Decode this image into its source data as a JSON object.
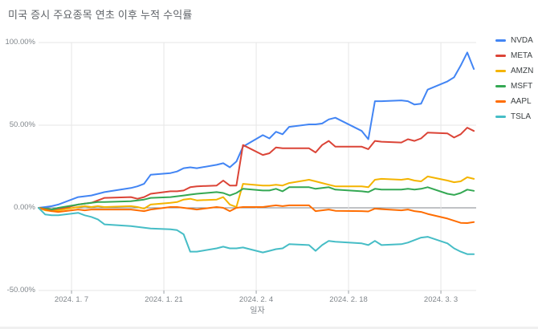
{
  "title": "미국 증시 주요종목 연초 이후 누적 수익률",
  "x_axis": {
    "title": "일자",
    "ticks": [
      {
        "label": "2024. 1. 7",
        "day": 5
      },
      {
        "label": "2024. 1. 21",
        "day": 19
      },
      {
        "label": "2024. 2. 4",
        "day": 33
      },
      {
        "label": "2024. 2. 18",
        "day": 47
      },
      {
        "label": "2024. 3. 3",
        "day": 61
      }
    ]
  },
  "y_axis": {
    "ticks": [
      {
        "label": "100.00%",
        "value": 100
      },
      {
        "label": "50.00%",
        "value": 50
      },
      {
        "label": "0.00%",
        "value": 0
      },
      {
        "label": "-50.00%",
        "value": -50
      }
    ]
  },
  "colors": {
    "grid": "#e6e6e6",
    "zero_line": "#80868b",
    "tick": "#9aa0a6",
    "title_text": "#5f6368",
    "axis_text": "#80868b",
    "legend_text": "#3c4043"
  },
  "chart_data": {
    "type": "line",
    "title": "미국 증시 주요종목 연초 이후 누적 수익률",
    "xlabel": "일자",
    "ylabel": "",
    "ylim": [
      -50,
      100
    ],
    "grid": true,
    "legend_position": "right",
    "x_unit": "trading days 2024",
    "dates": [
      "01-02",
      "01-03",
      "01-04",
      "01-05",
      "01-08",
      "01-09",
      "01-10",
      "01-11",
      "01-12",
      "01-16",
      "01-17",
      "01-18",
      "01-19",
      "01-22",
      "01-23",
      "01-24",
      "01-25",
      "01-26",
      "01-29",
      "01-30",
      "01-31",
      "02-01",
      "02-02",
      "02-05",
      "02-06",
      "02-07",
      "02-08",
      "02-09",
      "02-12",
      "02-13",
      "02-14",
      "02-15",
      "02-16",
      "02-20",
      "02-21",
      "02-22",
      "02-23",
      "02-26",
      "02-27",
      "02-28",
      "02-29",
      "03-01",
      "03-04",
      "03-05",
      "03-06",
      "03-07",
      "03-08"
    ],
    "day_offsets": [
      0,
      1,
      2,
      3,
      6,
      7,
      8,
      9,
      10,
      14,
      15,
      16,
      17,
      20,
      21,
      22,
      23,
      24,
      27,
      28,
      29,
      30,
      31,
      34,
      35,
      36,
      37,
      38,
      41,
      42,
      43,
      44,
      45,
      49,
      50,
      51,
      52,
      55,
      56,
      57,
      58,
      59,
      62,
      63,
      64,
      65,
      66
    ],
    "series": [
      {
        "name": "NVDA",
        "color": "#4285f4",
        "values": [
          0,
          0.5,
          1,
          2,
          6.5,
          7,
          7.5,
          8.5,
          9.5,
          12,
          13,
          14.5,
          20,
          21,
          22,
          24,
          24.5,
          24,
          26,
          27,
          24.5,
          28,
          37,
          44,
          42,
          46,
          44.5,
          49,
          50.5,
          50.5,
          51,
          53.5,
          54.5,
          46.5,
          41.5,
          64.5,
          64.5,
          65,
          64.5,
          62.5,
          63,
          71.5,
          76.5,
          79,
          86,
          94,
          84
        ]
      },
      {
        "name": "META",
        "color": "#db4437",
        "values": [
          0,
          -0.5,
          -1,
          -1,
          2,
          2.5,
          3,
          4.5,
          6,
          6.5,
          5.5,
          6.5,
          8.5,
          10,
          10,
          10.5,
          12.5,
          13,
          13.5,
          16.5,
          13.5,
          13.5,
          38,
          32,
          33,
          36.5,
          36,
          36,
          36,
          33.5,
          38,
          40.5,
          37,
          37,
          35.5,
          40.5,
          40,
          39.5,
          41.5,
          40.5,
          42,
          45.5,
          45,
          42.5,
          44.5,
          48.5,
          46.5
        ]
      },
      {
        "name": "AMZN",
        "color": "#f4b400",
        "values": [
          0,
          -1.5,
          -2,
          -1.5,
          0.5,
          1,
          0.5,
          1,
          0.5,
          1,
          0.5,
          -0.5,
          2,
          3,
          3.5,
          5,
          5.5,
          4.5,
          5,
          6.5,
          2,
          0.5,
          14.5,
          13.5,
          13.5,
          14,
          13.5,
          15,
          17,
          16,
          15,
          14,
          13,
          13,
          12.5,
          17,
          17.5,
          17,
          17.5,
          16.5,
          16,
          19,
          16.5,
          15.5,
          16,
          18.5,
          17.5
        ]
      },
      {
        "name": "MSFT",
        "color": "#34a853",
        "values": [
          0,
          -0.5,
          -1,
          0,
          2,
          2.5,
          3,
          3.5,
          3.5,
          4,
          4.5,
          5,
          6,
          6.5,
          7,
          7.5,
          8,
          8.5,
          9.5,
          9,
          7.5,
          9,
          11.5,
          10.5,
          10.5,
          11.5,
          10,
          12.5,
          12.5,
          11.5,
          12,
          12.5,
          11,
          10,
          9.5,
          11.5,
          11,
          11,
          11.5,
          11,
          11.5,
          12.5,
          8.5,
          7.8,
          9,
          11,
          10.3
        ]
      },
      {
        "name": "AAPL",
        "color": "#ff6d01",
        "values": [
          0,
          -1,
          -2,
          -2.5,
          -1,
          -1.5,
          -1,
          -1,
          -1,
          -1,
          -1.5,
          -2,
          -1,
          0.5,
          0.5,
          0,
          -0.5,
          -1,
          0.5,
          0,
          -2,
          0,
          0.5,
          0.5,
          1,
          1.5,
          1,
          1.5,
          1.5,
          -2,
          -1.5,
          -1,
          -1.8,
          -2,
          -2.2,
          -0.5,
          -0.8,
          -1.5,
          -1,
          -2,
          -2.5,
          -3.7,
          -6.5,
          -7.8,
          -9.1,
          -9.2,
          -8.6
        ]
      },
      {
        "name": "TSLA",
        "color": "#46bdc6",
        "values": [
          0,
          -4,
          -4.5,
          -4.5,
          -3,
          -4.5,
          -5.5,
          -7,
          -10,
          -11,
          -11.5,
          -12,
          -12.5,
          -13,
          -13.5,
          -16,
          -26.5,
          -26.5,
          -24.5,
          -23.5,
          -24.5,
          -24.5,
          -24,
          -27,
          -26,
          -25,
          -24.5,
          -22,
          -22.5,
          -26,
          -22.5,
          -20,
          -20.5,
          -21.5,
          -22.5,
          -20,
          -22.5,
          -22,
          -21,
          -19.5,
          -18,
          -17.5,
          -21.5,
          -24.5,
          -26.5,
          -28,
          -28
        ]
      }
    ]
  }
}
